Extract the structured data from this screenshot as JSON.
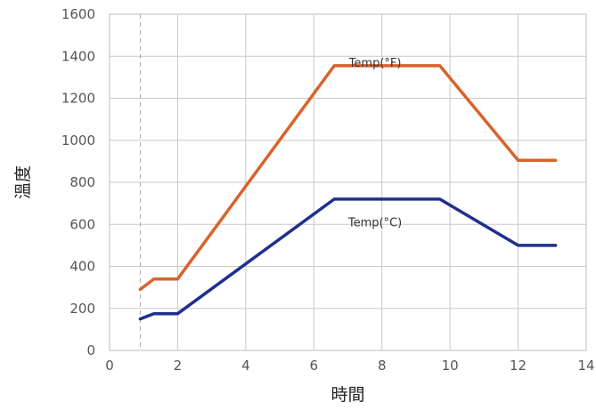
{
  "chart_data": {
    "type": "line",
    "xlabel": "時間",
    "ylabel": "溫度",
    "xlim": [
      0,
      14
    ],
    "ylim": [
      0,
      1600
    ],
    "x_ticks": [
      0,
      2,
      4,
      6,
      8,
      10,
      12,
      14
    ],
    "y_ticks": [
      0,
      200,
      400,
      600,
      800,
      1000,
      1200,
      1400,
      1600
    ],
    "grid": true,
    "reference_line_x": 0.9,
    "series": [
      {
        "name": "Temp(°F)",
        "color": "#d9622b",
        "label_at": [
          7.8,
          1350
        ],
        "points": [
          [
            0.9,
            290
          ],
          [
            1.3,
            340
          ],
          [
            2.0,
            340
          ],
          [
            6.6,
            1355
          ],
          [
            9.7,
            1355
          ],
          [
            12.0,
            905
          ],
          [
            13.1,
            905
          ]
        ]
      },
      {
        "name": "Temp(°C)",
        "color": "#1f2f8f",
        "label_at": [
          7.8,
          590
        ],
        "points": [
          [
            0.9,
            150
          ],
          [
            1.3,
            175
          ],
          [
            2.0,
            175
          ],
          [
            6.6,
            720
          ],
          [
            9.7,
            720
          ],
          [
            12.0,
            500
          ],
          [
            13.1,
            500
          ]
        ]
      }
    ]
  }
}
